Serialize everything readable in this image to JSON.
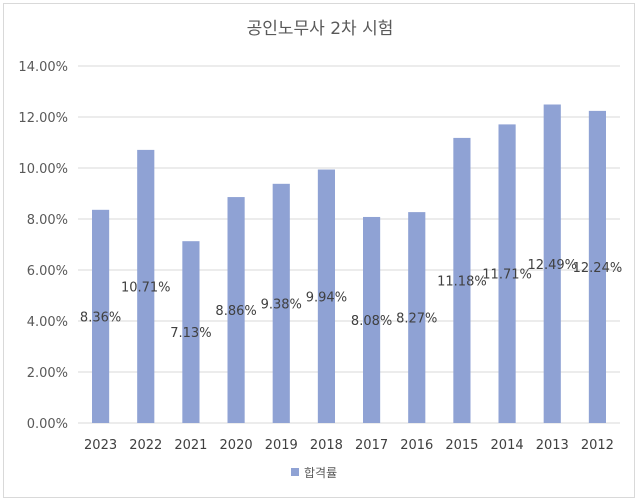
{
  "chart_data": {
    "type": "bar",
    "title": "공인노무사 2차 시험",
    "categories": [
      "2023",
      "2022",
      "2021",
      "2020",
      "2019",
      "2018",
      "2017",
      "2016",
      "2015",
      "2014",
      "2013",
      "2012"
    ],
    "series": [
      {
        "name": "합격률",
        "values": [
          8.36,
          10.71,
          7.13,
          8.86,
          9.38,
          9.94,
          8.08,
          8.27,
          11.18,
          11.71,
          12.49,
          12.24
        ],
        "labels": [
          "8.36%",
          "10.71%",
          "7.13%",
          "8.86%",
          "9.38%",
          "9.94%",
          "8.08%",
          "8.27%",
          "11.18%",
          "11.71%",
          "12.49%",
          "12.24%"
        ],
        "color": "#8fa2d4"
      }
    ],
    "yticks": [
      "0.00%",
      "2.00%",
      "4.00%",
      "6.00%",
      "8.00%",
      "10.00%",
      "12.00%",
      "14.00%"
    ],
    "ylim": [
      0,
      14
    ],
    "ystep": 2,
    "xlabel": "",
    "ylabel": "",
    "grid": true,
    "legend_position": "bottom",
    "gridline_color": "#d9d9d9"
  }
}
